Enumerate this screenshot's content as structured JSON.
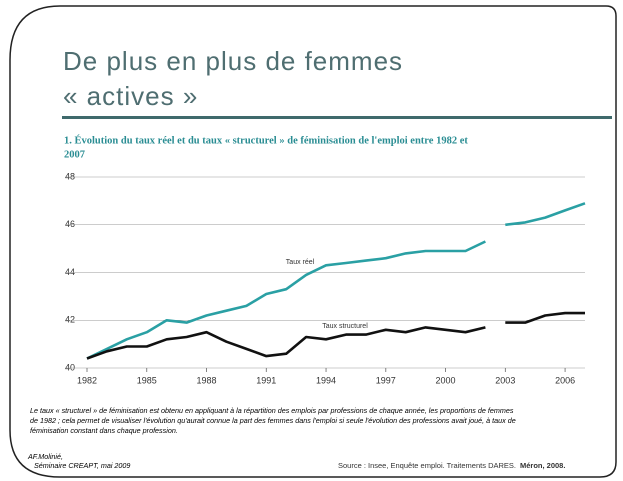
{
  "title_lines": [
    "De plus en plus de femmes",
    "« actives »"
  ],
  "chart_data": {
    "type": "line",
    "title_lines": [
      "1. Évolution du taux réel et du taux « structurel » de féminisation de l'emploi entre 1982 et",
      "2007"
    ],
    "x": [
      1982,
      1983,
      1984,
      1985,
      1986,
      1987,
      1988,
      1989,
      1990,
      1991,
      1992,
      1993,
      1994,
      1995,
      1996,
      1997,
      1998,
      1999,
      2000,
      2001,
      2002,
      null,
      2003,
      2004,
      2005,
      2006,
      2007
    ],
    "series": [
      {
        "name": "Taux réel",
        "color": "#2aa0a4",
        "values": [
          40.4,
          40.8,
          41.2,
          41.5,
          42.0,
          41.9,
          42.2,
          42.4,
          42.6,
          43.1,
          43.3,
          43.9,
          44.3,
          44.4,
          44.5,
          44.6,
          44.8,
          44.9,
          44.9,
          44.9,
          45.3,
          null,
          46.0,
          46.1,
          46.3,
          46.6,
          46.9
        ]
      },
      {
        "name": "Taux structurel",
        "color": "#111111",
        "values": [
          40.4,
          40.7,
          40.9,
          40.9,
          41.2,
          41.3,
          41.5,
          41.1,
          40.8,
          40.5,
          40.6,
          41.3,
          41.2,
          41.4,
          41.4,
          41.6,
          41.5,
          41.7,
          41.6,
          41.5,
          41.7,
          null,
          41.9,
          41.9,
          42.2,
          42.3,
          42.3
        ]
      }
    ],
    "xlim": [
      1982,
      2007
    ],
    "xticks": [
      1982,
      1985,
      1988,
      1991,
      1994,
      1997,
      2000,
      2003,
      2006
    ],
    "ylim": [
      40,
      48
    ],
    "yticks": [
      40,
      42,
      44,
      46,
      48
    ],
    "grid": true
  },
  "note_lines": [
    "Le taux « structurel » de féminisation est obtenu en appliquant à la répartition des emplois par professions de chaque année, les proportions de femmes",
    "de 1982 ; cela permet de visualiser l'évolution qu'aurait connue la part des femmes dans l'emploi si seule l'évolution des professions avait joué, à taux de",
    "féminisation constant dans chaque profession."
  ],
  "author_lines": [
    "AF.Molinié,",
    "Séminaire CREAPT, mai 2009"
  ],
  "source": {
    "text": "Source : Insee, Enquête emploi. Traitements DARES.",
    "bold": "Méron, 2008."
  }
}
